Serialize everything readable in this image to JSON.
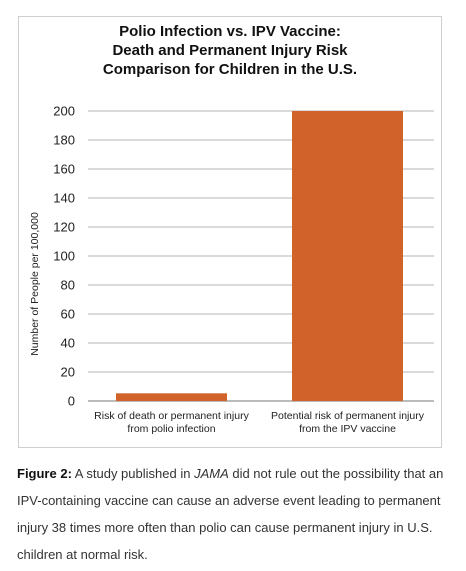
{
  "chart_data": {
    "type": "bar",
    "title_lines": [
      "Polio Infection vs. IPV Vaccine:",
      "Death and Permanent Injury Risk",
      "Comparison for Children in the U.S."
    ],
    "ylabel": "Number of People per 100,000",
    "xlabel": "",
    "ylim": [
      0,
      200
    ],
    "yticks": [
      0,
      20,
      40,
      60,
      80,
      100,
      120,
      140,
      160,
      180,
      200
    ],
    "grid": true,
    "categories": [
      [
        "Risk of death or permanent injury",
        "from polio infection"
      ],
      [
        "Potential risk of permanent injury",
        "from the IPV vaccine"
      ]
    ],
    "values": [
      5.3,
      200
    ],
    "bar_color": "#d0622a"
  },
  "caption": {
    "lead": "Figure 2:",
    "text_before": " A study published in ",
    "journal": "JAMA",
    "text_after": " did not rule out the possibility that an IPV-containing vaccine can cause an adverse event leading to permanent injury 38 times more often than polio can cause permanent injury in U.S. children at normal risk."
  }
}
